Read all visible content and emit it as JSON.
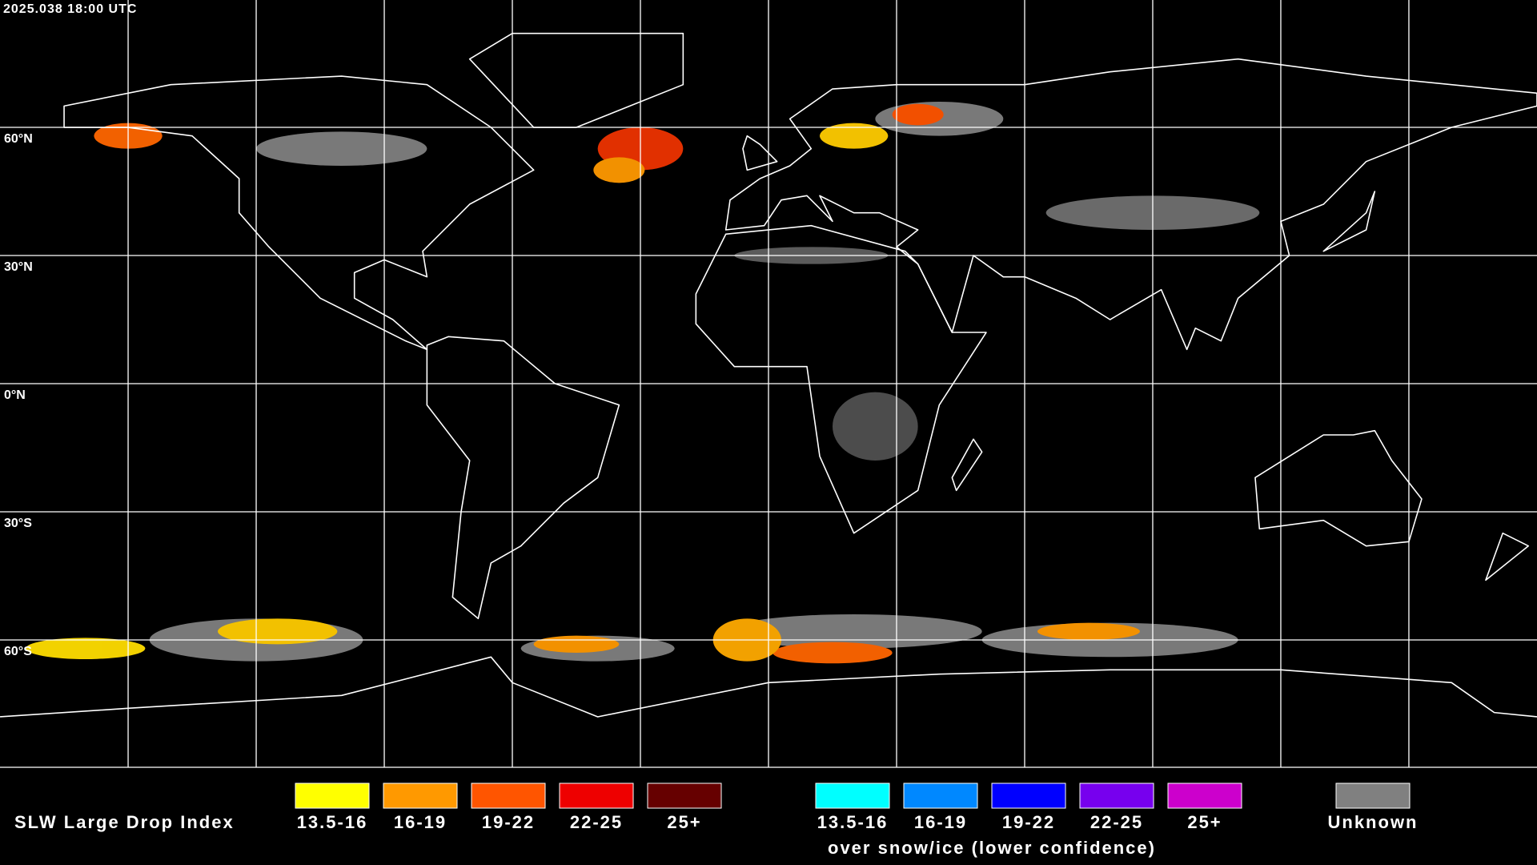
{
  "header": {
    "timestamp": "2025.038 18:00 UTC"
  },
  "lat_labels": [
    "60°N",
    "30°N",
    "0°N",
    "30°S",
    "60°S"
  ],
  "legend": {
    "title": "SLW Large Drop Index",
    "items": [
      {
        "label": "13.5-16",
        "color": "#ffff00"
      },
      {
        "label": "16-19",
        "color": "#ff9900"
      },
      {
        "label": "19-22",
        "color": "#ff5500"
      },
      {
        "label": "22-25",
        "color": "#ee0000"
      },
      {
        "label": "25+",
        "color": "#660000"
      }
    ],
    "snow_items": [
      {
        "label": "13.5-16",
        "color": "#00ffff"
      },
      {
        "label": "16-19",
        "color": "#0088ff"
      },
      {
        "label": "19-22",
        "color": "#0000ff"
      },
      {
        "label": "22-25",
        "color": "#7700ee"
      },
      {
        "label": "25+",
        "color": "#cc00cc"
      }
    ],
    "snow_caption": "over snow/ice (lower confidence)",
    "unknown": {
      "label": "Unknown",
      "color": "#808080"
    }
  }
}
